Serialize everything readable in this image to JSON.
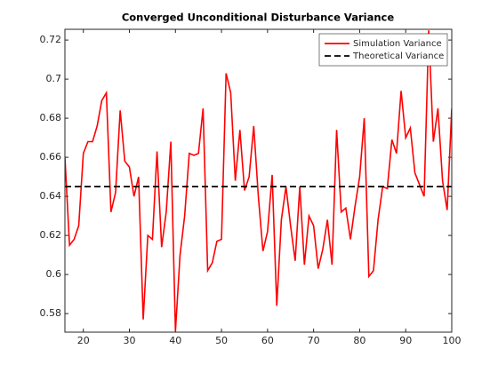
{
  "chart_data": {
    "type": "line",
    "title": "Converged Unconditional Disturbance Variance",
    "x": [
      16,
      17,
      18,
      19,
      20,
      21,
      22,
      23,
      24,
      25,
      26,
      27,
      28,
      29,
      30,
      31,
      32,
      33,
      34,
      35,
      36,
      37,
      38,
      39,
      40,
      41,
      42,
      43,
      44,
      45,
      46,
      47,
      48,
      49,
      50,
      51,
      52,
      53,
      54,
      55,
      56,
      57,
      58,
      59,
      60,
      61,
      62,
      63,
      64,
      65,
      66,
      67,
      68,
      69,
      70,
      71,
      72,
      73,
      74,
      75,
      76,
      77,
      78,
      79,
      80,
      81,
      82,
      83,
      84,
      85,
      86,
      87,
      88,
      89,
      90,
      91,
      92,
      93,
      94,
      95,
      96,
      97,
      98,
      99,
      100
    ],
    "series": [
      {
        "name": "Simulation Variance",
        "color": "#ff0000",
        "values": [
          0.66,
          0.615,
          0.618,
          0.625,
          0.662,
          0.668,
          0.668,
          0.676,
          0.689,
          0.693,
          0.632,
          0.642,
          0.684,
          0.658,
          0.655,
          0.64,
          0.65,
          0.577,
          0.62,
          0.618,
          0.663,
          0.614,
          0.632,
          0.668,
          0.571,
          0.61,
          0.63,
          0.662,
          0.661,
          0.662,
          0.685,
          0.602,
          0.606,
          0.617,
          0.618,
          0.703,
          0.693,
          0.648,
          0.674,
          0.643,
          0.65,
          0.676,
          0.64,
          0.612,
          0.622,
          0.651,
          0.584,
          0.628,
          0.645,
          0.625,
          0.607,
          0.645,
          0.605,
          0.63,
          0.625,
          0.603,
          0.613,
          0.628,
          0.605,
          0.674,
          0.632,
          0.634,
          0.618,
          0.635,
          0.65,
          0.68,
          0.599,
          0.602,
          0.628,
          0.645,
          0.644,
          0.669,
          0.662,
          0.694,
          0.67,
          0.675,
          0.652,
          0.646,
          0.64,
          0.725,
          0.668,
          0.685,
          0.648,
          0.633,
          0.685
        ]
      }
    ],
    "reference_line": {
      "name": "Theoretical Variance",
      "value": 0.645,
      "color": "#000000"
    },
    "xlim": [
      16,
      100
    ],
    "xticks": [
      20,
      30,
      40,
      50,
      60,
      70,
      80,
      90,
      100
    ],
    "ylim": [
      0.5705,
      0.7255
    ],
    "yticks": [
      0.58,
      0.6,
      0.62,
      0.64,
      0.66,
      0.68,
      0.7,
      0.72
    ],
    "legend": "northeast",
    "grid": false
  }
}
